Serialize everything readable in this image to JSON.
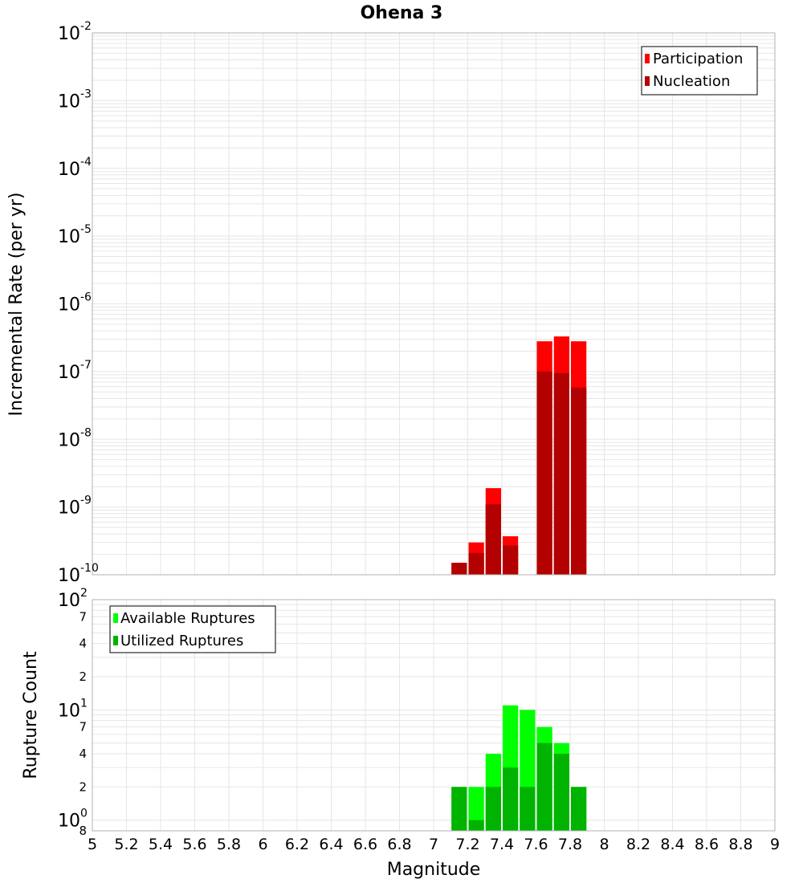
{
  "title": "Ohena 3",
  "colors": {
    "participation": "#ff0000",
    "nucleation": "#b30000",
    "available": "#00ff00",
    "utilized": "#00b300",
    "grid": "#e6e6e6",
    "frame": "#b0b0b0"
  },
  "chart_data": [
    {
      "type": "bar",
      "xlabel": "Magnitude",
      "ylabel": "Incremental Rate (per yr)",
      "xlim": [
        5,
        9
      ],
      "ylim": [
        1e-10,
        0.01
      ],
      "y_scale": "log",
      "grid": true,
      "legend_position": "top-right",
      "x": [
        7.15,
        7.25,
        7.35,
        7.45,
        7.55,
        7.65,
        7.75,
        7.85
      ],
      "series": [
        {
          "name": "Participation",
          "values": [
            1.5e-10,
            3e-10,
            1.9e-09,
            3.7e-10,
            null,
            2.8e-07,
            3.3e-07,
            2.8e-07
          ]
        },
        {
          "name": "Nucleation",
          "values": [
            1.5e-10,
            2.1e-10,
            1.1e-09,
            2.7e-10,
            null,
            1e-07,
            9.5e-08,
            5.8e-08
          ]
        }
      ],
      "y_ticks": [
        {
          "base": "10",
          "exp": "-2"
        },
        {
          "base": "10",
          "exp": "-3"
        },
        {
          "base": "10",
          "exp": "-4"
        },
        {
          "base": "10",
          "exp": "-5"
        },
        {
          "base": "10",
          "exp": "-6"
        },
        {
          "base": "10",
          "exp": "-7"
        },
        {
          "base": "10",
          "exp": "-8"
        },
        {
          "base": "10",
          "exp": "-9"
        },
        {
          "base": "10",
          "exp": "-10"
        }
      ]
    },
    {
      "type": "bar",
      "xlabel": "Magnitude",
      "ylabel": "Rupture Count",
      "xlim": [
        5,
        9
      ],
      "y_scale": "log",
      "grid": true,
      "legend_position": "top-left",
      "x": [
        7.15,
        7.25,
        7.35,
        7.45,
        7.55,
        7.65,
        7.75,
        7.85
      ],
      "series": [
        {
          "name": "Available Ruptures",
          "values": [
            2,
            2,
            4,
            11,
            10,
            7,
            5,
            2
          ]
        },
        {
          "name": "Utilized Ruptures",
          "values": [
            2,
            1,
            2,
            3,
            2,
            5,
            4,
            2
          ]
        }
      ],
      "y_major_ticks": [
        {
          "base": "10",
          "exp": "2"
        },
        {
          "base": "10",
          "exp": "1"
        },
        {
          "base": "10",
          "exp": "0"
        }
      ],
      "y_minor_ticks": [
        "7",
        "4",
        "2",
        "7",
        "4",
        "2",
        "8"
      ]
    }
  ],
  "x_ticks": [
    "5",
    "5.2",
    "5.4",
    "5.6",
    "5.8",
    "6",
    "6.2",
    "6.4",
    "6.6",
    "6.8",
    "7",
    "7.2",
    "7.4",
    "7.6",
    "7.8",
    "8",
    "8.2",
    "8.4",
    "8.6",
    "8.8",
    "9"
  ]
}
